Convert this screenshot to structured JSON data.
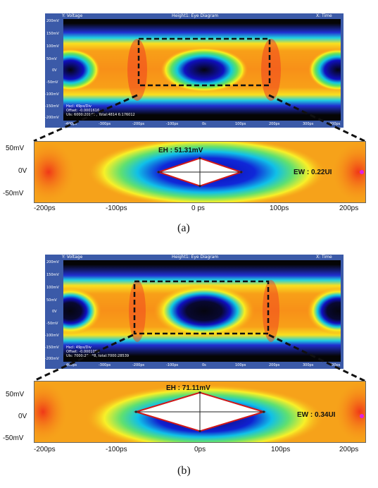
{
  "figures": [
    {
      "id": "a",
      "caption": "(a)",
      "scope": {
        "left_title": "Y: Voltage",
        "center_title": "Height1: Eye Diagram",
        "right_title": "X: Time",
        "y_ticks": [
          "200mV",
          "150mV",
          "100mV",
          "50mV",
          "0V",
          "-50mV",
          "-100mV",
          "-150mV",
          "-200mV"
        ],
        "x_ticks": [
          "-400ps",
          "-300ps",
          "-200ps",
          "-100ps",
          "0s",
          "100ps",
          "200ps",
          "300ps",
          "400ps"
        ],
        "info_lines": [
          "Hscl: 49ps/Div",
          "Offset: -0.0001616",
          "UIs: 6000:20148 , Total:4814 6:176012"
        ]
      },
      "zoom": {
        "y_ticks": [
          "50mV",
          "0V",
          "-50mV"
        ],
        "x_ticks": [
          "-200ps",
          "-100ps",
          "0 ps",
          "100ps",
          "200ps"
        ],
        "eh_label": "EH : 51.31mV",
        "ew_label": "EW : 0.22UI"
      }
    },
    {
      "id": "b",
      "caption": "(b)",
      "scope": {
        "left_title": "Y: Voltage",
        "center_title": "Height1: Eye Diagram",
        "right_title": "X: Time",
        "y_ticks": [
          "200mV",
          "150mV",
          "100mV",
          "50mV",
          "0V",
          "-50mV",
          "-100mV",
          "-150mV",
          "-200mV"
        ],
        "x_ticks": [
          "-400ps",
          "-300ps",
          "-200ps",
          "-100ps",
          "0s",
          "100ps",
          "200ps",
          "300ps",
          "400ps"
        ],
        "info_lines": [
          "Hscl: 49ps/Div",
          "Offset: -0.0001000",
          "UIs: 7000:28***8, total:7000:28539"
        ]
      },
      "zoom": {
        "y_ticks": [
          "50mV",
          "0V",
          "-50mV"
        ],
        "x_ticks": [
          "-200ps",
          "-100ps",
          "0ps",
          "100ps",
          "200ps"
        ],
        "eh_label": "EH : 71.11mV",
        "ew_label": "EW : 0.34UI"
      }
    }
  ],
  "chart_data": [
    {
      "type": "heatmap",
      "title": "Height1: Eye Diagram",
      "figure": "a",
      "x_axis_label": "X: Time",
      "y_axis_label": "Y: Voltage",
      "xlim_ps": [
        -400,
        400
      ],
      "ylim_mV": [
        -200,
        200
      ],
      "eye_height_mV": 51.31,
      "eye_width_UI": 0.22,
      "zoom_xlim_ps": [
        -200,
        200
      ],
      "zoom_ylim_mV": [
        -50,
        50
      ],
      "eye_opening_polygon": [
        {
          "t_ps": -55,
          "v_mV": 0
        },
        {
          "t_ps": 0,
          "v_mV": 25.7
        },
        {
          "t_ps": 55,
          "v_mV": 0
        },
        {
          "t_ps": 0,
          "v_mV": -25.7
        }
      ],
      "colors": {
        "low": "#1a1ad0",
        "mid": "#10c8d8",
        "high": "#f8f020",
        "hot": "#f03818"
      }
    },
    {
      "type": "heatmap",
      "title": "Height1: Eye Diagram",
      "figure": "b",
      "x_axis_label": "X: Time",
      "y_axis_label": "Y: Voltage",
      "xlim_ps": [
        -400,
        400
      ],
      "ylim_mV": [
        -200,
        200
      ],
      "eye_height_mV": 71.11,
      "eye_width_UI": 0.34,
      "zoom_xlim_ps": [
        -200,
        200
      ],
      "zoom_ylim_mV": [
        -50,
        50
      ],
      "eye_opening_polygon": [
        {
          "t_ps": -85,
          "v_mV": 0
        },
        {
          "t_ps": 0,
          "v_mV": 35.6
        },
        {
          "t_ps": 85,
          "v_mV": 0
        },
        {
          "t_ps": 0,
          "v_mV": -35.6
        }
      ],
      "colors": {
        "low": "#1a1ad0",
        "mid": "#10c8d8",
        "high": "#f8f020",
        "hot": "#f03818"
      }
    }
  ]
}
